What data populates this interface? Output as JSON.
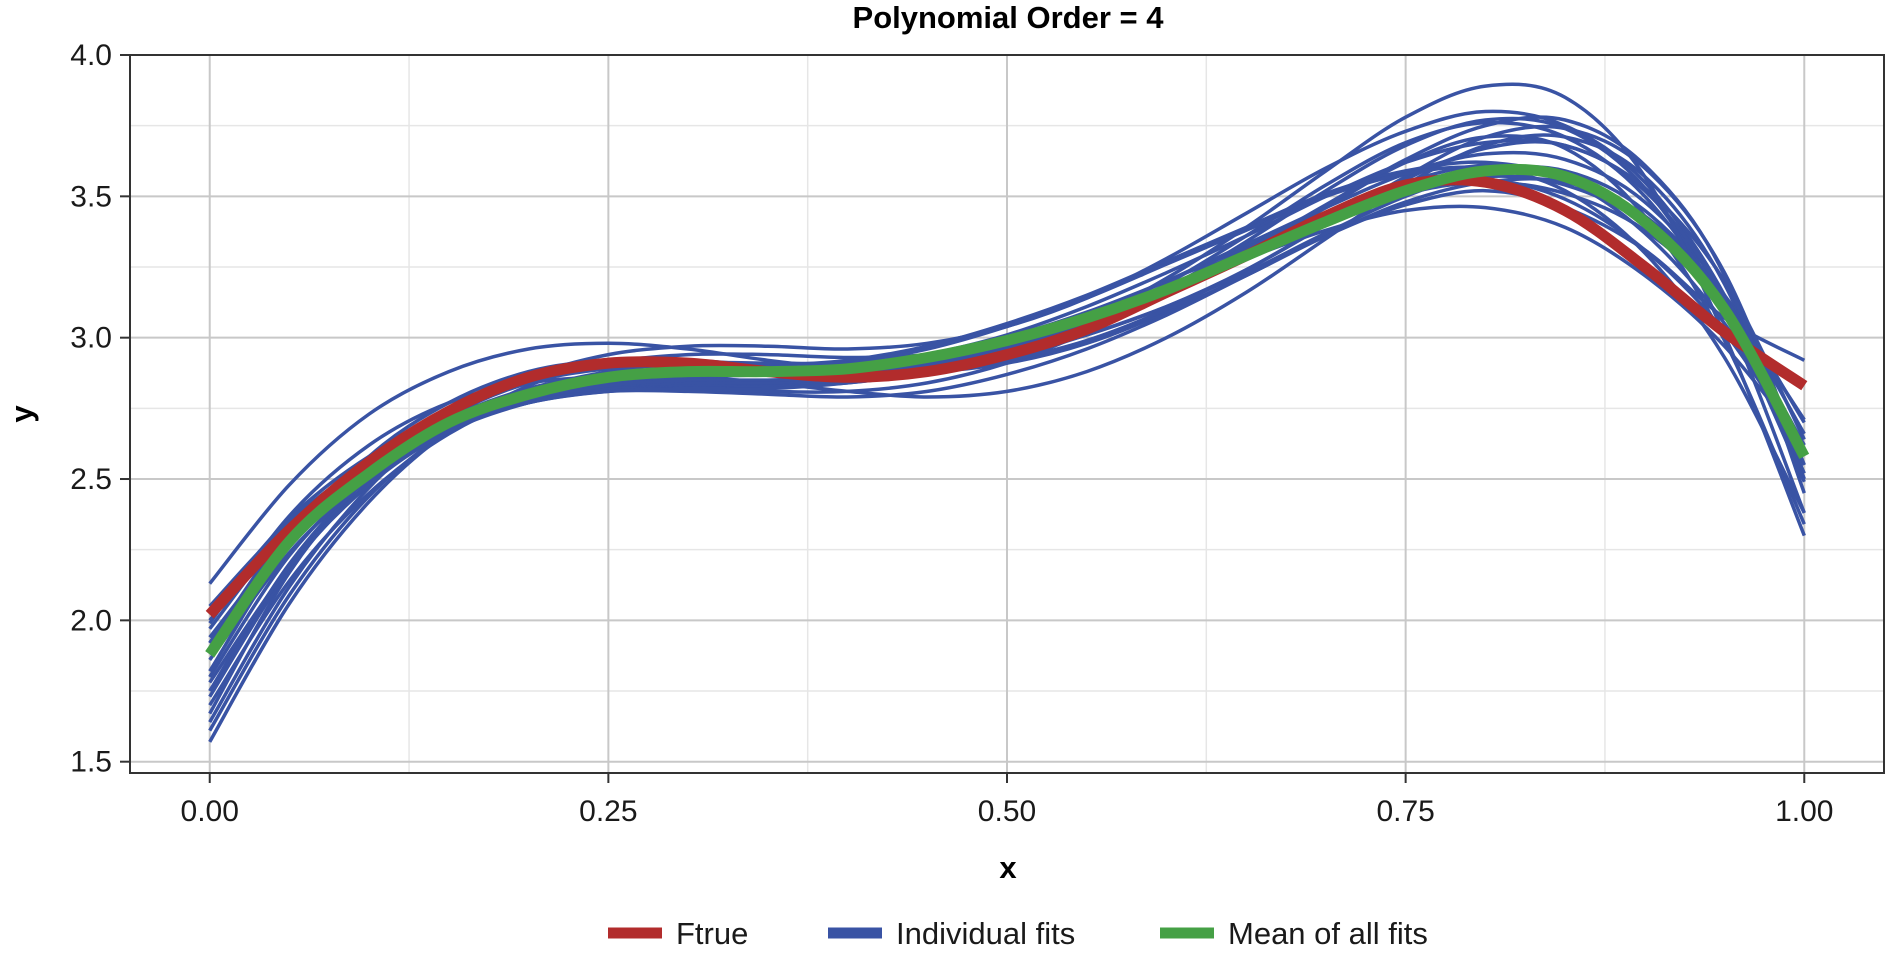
{
  "chart_data": {
    "type": "line",
    "title": "Polynomial Order = 4",
    "xlabel": "x",
    "ylabel": "y",
    "xlim": [
      -0.05,
      1.05
    ],
    "ylim": [
      1.46,
      4.0
    ],
    "x_ticks": [
      0.0,
      0.25,
      0.5,
      0.75,
      1.0
    ],
    "x_tick_labels": [
      "0.00",
      "0.25",
      "0.50",
      "0.75",
      "1.00"
    ],
    "y_ticks": [
      1.5,
      2.0,
      2.5,
      3.0,
      3.5,
      4.0
    ],
    "y_tick_labels": [
      "1.5",
      "2.0",
      "2.5",
      "3.0",
      "3.5",
      "4.0"
    ],
    "grid": true,
    "legend_position": "bottom",
    "colors": {
      "ftrue": "#b22c2c",
      "individual": "#3953a4",
      "mean": "#45a045",
      "grid_major": "#c8c8c8",
      "grid_minor": "#e6e6e6",
      "frame": "#333333"
    },
    "legend": [
      {
        "label": "Ftrue",
        "color": "#b22c2c"
      },
      {
        "label": "Individual fits",
        "color": "#3953a4"
      },
      {
        "label": "Mean of all fits",
        "color": "#45a045"
      }
    ],
    "x": [
      0.0,
      0.05,
      0.1,
      0.15,
      0.2,
      0.25,
      0.3,
      0.35,
      0.4,
      0.45,
      0.5,
      0.55,
      0.6,
      0.65,
      0.7,
      0.75,
      0.8,
      0.85,
      0.9,
      0.95,
      1.0
    ],
    "series": [
      {
        "name": "Ftrue",
        "values": [
          2.02,
          2.32,
          2.56,
          2.74,
          2.86,
          2.91,
          2.91,
          2.88,
          2.86,
          2.88,
          2.94,
          3.03,
          3.16,
          3.29,
          3.43,
          3.54,
          3.55,
          3.45,
          3.25,
          3.02,
          2.83
        ]
      },
      {
        "name": "Mean of all fits",
        "values": [
          1.88,
          2.28,
          2.52,
          2.7,
          2.8,
          2.86,
          2.88,
          2.88,
          2.89,
          2.93,
          2.99,
          3.07,
          3.17,
          3.29,
          3.41,
          3.52,
          3.59,
          3.57,
          3.41,
          3.1,
          2.58
        ]
      }
    ],
    "individual_fits": [
      [
        2.05,
        2.35,
        2.56,
        2.71,
        2.81,
        2.86,
        2.87,
        2.87,
        2.88,
        2.93,
        3.0,
        3.09,
        3.2,
        3.32,
        3.44,
        3.55,
        3.61,
        3.57,
        3.4,
        3.08,
        2.55
      ],
      [
        1.57,
        2.06,
        2.42,
        2.67,
        2.83,
        2.91,
        2.94,
        2.94,
        2.93,
        2.94,
        2.98,
        3.05,
        3.16,
        3.3,
        3.46,
        3.62,
        3.71,
        3.67,
        3.43,
        2.99,
        2.34
      ],
      [
        2.13,
        2.48,
        2.73,
        2.88,
        2.96,
        2.98,
        2.96,
        2.92,
        2.89,
        2.88,
        2.91,
        2.98,
        3.09,
        3.22,
        3.36,
        3.47,
        3.52,
        3.46,
        3.31,
        3.07,
        2.92
      ],
      [
        1.7,
        2.14,
        2.45,
        2.66,
        2.79,
        2.85,
        2.86,
        2.84,
        2.81,
        2.79,
        2.81,
        2.88,
        3.0,
        3.16,
        3.35,
        3.54,
        3.68,
        3.71,
        3.57,
        3.19,
        2.5
      ],
      [
        1.92,
        2.32,
        2.57,
        2.72,
        2.8,
        2.83,
        2.83,
        2.83,
        2.84,
        2.88,
        2.95,
        3.05,
        3.18,
        3.31,
        3.44,
        3.53,
        3.56,
        3.49,
        3.31,
        3.02,
        2.6
      ],
      [
        1.64,
        2.12,
        2.47,
        2.71,
        2.86,
        2.94,
        2.97,
        2.97,
        2.96,
        2.98,
        3.04,
        3.14,
        3.28,
        3.44,
        3.6,
        3.73,
        3.8,
        3.75,
        3.55,
        3.15,
        2.52
      ],
      [
        1.8,
        2.23,
        2.51,
        2.68,
        2.77,
        2.81,
        2.81,
        2.8,
        2.79,
        2.81,
        2.87,
        2.96,
        3.08,
        3.22,
        3.36,
        3.48,
        3.55,
        3.55,
        3.43,
        3.15,
        2.7
      ],
      [
        1.99,
        2.37,
        2.62,
        2.77,
        2.84,
        2.86,
        2.85,
        2.84,
        2.85,
        2.89,
        2.96,
        3.06,
        3.17,
        3.28,
        3.38,
        3.45,
        3.46,
        3.39,
        3.22,
        2.97,
        2.62
      ],
      [
        1.75,
        2.2,
        2.51,
        2.71,
        2.82,
        2.87,
        2.88,
        2.88,
        2.88,
        2.9,
        2.94,
        3.01,
        3.11,
        3.24,
        3.4,
        3.57,
        3.71,
        3.74,
        3.6,
        3.23,
        2.55
      ],
      [
        1.86,
        2.24,
        2.5,
        2.67,
        2.77,
        2.82,
        2.83,
        2.84,
        2.86,
        2.91,
        2.98,
        3.08,
        3.2,
        3.33,
        3.46,
        3.58,
        3.65,
        3.63,
        3.48,
        3.15,
        2.59
      ],
      [
        2.0,
        2.33,
        2.56,
        2.71,
        2.79,
        2.82,
        2.82,
        2.81,
        2.81,
        2.84,
        2.91,
        3.02,
        3.17,
        3.34,
        3.52,
        3.68,
        3.77,
        3.74,
        3.53,
        3.09,
        2.38
      ],
      [
        1.67,
        2.17,
        2.51,
        2.72,
        2.84,
        2.89,
        2.9,
        2.89,
        2.88,
        2.89,
        2.93,
        3.01,
        3.11,
        3.23,
        3.37,
        3.5,
        3.59,
        3.59,
        3.45,
        3.14,
        2.66
      ],
      [
        1.92,
        2.3,
        2.55,
        2.71,
        2.81,
        2.86,
        2.88,
        2.9,
        2.92,
        2.97,
        3.05,
        3.15,
        3.27,
        3.39,
        3.51,
        3.59,
        3.62,
        3.56,
        3.37,
        3.05,
        2.59
      ],
      [
        1.82,
        2.27,
        2.58,
        2.77,
        2.88,
        2.92,
        2.92,
        2.9,
        2.88,
        2.88,
        2.92,
        2.99,
        3.1,
        3.24,
        3.4,
        3.56,
        3.67,
        3.68,
        3.52,
        3.14,
        2.5
      ],
      [
        1.97,
        2.33,
        2.57,
        2.72,
        2.81,
        2.85,
        2.87,
        2.88,
        2.91,
        2.96,
        3.04,
        3.14,
        3.26,
        3.38,
        3.5,
        3.58,
        3.6,
        3.52,
        3.3,
        2.93,
        2.38
      ],
      [
        1.73,
        2.18,
        2.49,
        2.69,
        2.8,
        2.86,
        2.87,
        2.87,
        2.87,
        2.89,
        2.95,
        3.05,
        3.19,
        3.36,
        3.54,
        3.69,
        3.76,
        3.71,
        3.5,
        3.1,
        2.49
      ],
      [
        2.03,
        2.36,
        2.58,
        2.72,
        2.8,
        2.83,
        2.84,
        2.84,
        2.86,
        2.9,
        2.97,
        3.07,
        3.18,
        3.3,
        3.42,
        3.51,
        3.55,
        3.51,
        3.38,
        3.12,
        2.71
      ],
      [
        1.88,
        2.26,
        2.52,
        2.69,
        2.79,
        2.84,
        2.86,
        2.87,
        2.89,
        2.94,
        3.01,
        3.11,
        3.23,
        3.36,
        3.5,
        3.62,
        3.69,
        3.68,
        3.53,
        3.2,
        2.64
      ],
      [
        1.61,
        2.09,
        2.44,
        2.67,
        2.81,
        2.88,
        2.91,
        2.91,
        2.91,
        2.93,
        2.98,
        3.06,
        3.17,
        3.31,
        3.47,
        3.63,
        3.75,
        3.77,
        3.61,
        3.22,
        2.45
      ],
      [
        1.94,
        2.29,
        2.53,
        2.68,
        2.77,
        2.81,
        2.82,
        2.82,
        2.84,
        2.88,
        2.95,
        3.05,
        3.16,
        3.28,
        3.41,
        3.51,
        3.57,
        3.54,
        3.4,
        3.1,
        2.62
      ],
      [
        1.78,
        2.19,
        2.48,
        2.67,
        2.78,
        2.83,
        2.85,
        2.85,
        2.86,
        2.89,
        2.96,
        3.06,
        3.21,
        3.39,
        3.59,
        3.78,
        3.89,
        3.85,
        3.57,
        3.01,
        2.3
      ]
    ]
  }
}
